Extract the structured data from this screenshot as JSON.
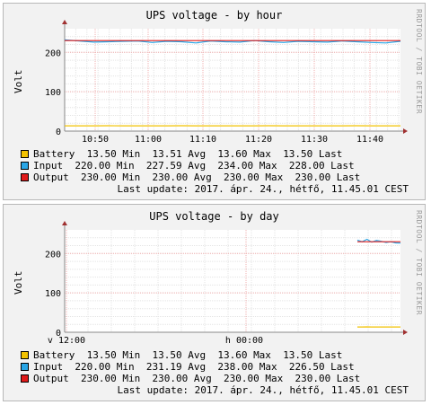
{
  "colors": {
    "battery": "#f2c200",
    "input": "#29a6e6",
    "output": "#e01b1b",
    "grid_major": "#f0b0b0",
    "grid_minor": "#e4e4e4",
    "axis": "#888888"
  },
  "side_text": "RRDTOOL / TOBI OETIKER",
  "graphs": [
    {
      "title": "UPS voltage - by hour",
      "ylabel": "Volt",
      "legend": [
        {
          "name": "Battery",
          "min": "13.50 Min",
          "avg": "13.51 Avg",
          "max": "13.60 Max",
          "last": "13.50 Last"
        },
        {
          "name": "Input",
          "min": "220.00 Min",
          "avg": "227.59 Avg",
          "max": "234.00 Max",
          "last": "228.00 Last"
        },
        {
          "name": "Output",
          "min": "230.00 Min",
          "avg": "230.00 Avg",
          "max": "230.00 Max",
          "last": "230.00 Last"
        }
      ],
      "last_update": "Last update: 2017. ápr. 24., hétfő, 11.45.01 CEST"
    },
    {
      "title": "UPS voltage - by day",
      "ylabel": "Volt",
      "legend": [
        {
          "name": "Battery",
          "min": "13.50 Min",
          "avg": "13.50 Avg",
          "max": "13.60 Max",
          "last": "13.50 Last"
        },
        {
          "name": "Input",
          "min": "220.00 Min",
          "avg": "231.19 Avg",
          "max": "238.00 Max",
          "last": "226.50 Last"
        },
        {
          "name": "Output",
          "min": "230.00 Min",
          "avg": "230.00 Avg",
          "max": "230.00 Max",
          "last": "230.00 Last"
        }
      ],
      "last_update": "Last update: 2017. ápr. 24., hétfő, 11.45.01 CEST"
    }
  ],
  "chart_data": [
    {
      "type": "line",
      "title": "UPS voltage - by hour",
      "ylabel": "Volt",
      "ylim": [
        0,
        260
      ],
      "yticks": [
        "0",
        "100",
        "200"
      ],
      "xticks": [
        "10:50",
        "11:00",
        "11:10",
        "11:20",
        "11:30",
        "11:40"
      ],
      "series": [
        {
          "name": "Battery",
          "values": [
            13.5,
            13.5,
            13.5,
            13.6,
            13.5,
            13.5,
            13.5,
            13.5,
            13.6,
            13.5,
            13.5,
            13.5,
            13.5,
            13.5,
            13.6,
            13.5,
            13.5,
            13.5,
            13.5,
            13.5,
            13.6,
            13.5,
            13.5,
            13.5
          ]
        },
        {
          "name": "Input",
          "values": [
            232,
            229,
            226,
            227,
            228,
            229,
            225,
            228,
            227,
            224,
            229,
            227,
            226,
            230,
            227,
            225,
            228,
            227,
            226,
            229,
            227,
            225,
            224,
            228
          ]
        },
        {
          "name": "Output",
          "values": [
            230,
            230,
            230,
            230,
            230,
            230,
            230,
            230,
            230,
            230,
            230,
            230,
            230,
            230,
            230,
            230,
            230,
            230,
            230,
            230,
            230,
            230,
            230,
            230
          ]
        }
      ],
      "grid": true
    },
    {
      "type": "line",
      "title": "UPS voltage - by day",
      "ylabel": "Volt",
      "ylim": [
        0,
        260
      ],
      "yticks": [
        "0",
        "100",
        "200"
      ],
      "xticks": [
        "v 12:00",
        "h 00:00"
      ],
      "series": [
        {
          "name": "Battery",
          "values": [
            13.5,
            13.5,
            13.6,
            13.5,
            13.5,
            13.5,
            13.5,
            13.5,
            13.5,
            13.5
          ]
        },
        {
          "name": "Input",
          "values": [
            234,
            230,
            236,
            229,
            233,
            231,
            228,
            230,
            227,
            226.5
          ]
        },
        {
          "name": "Output",
          "values": [
            230,
            230,
            230,
            230,
            230,
            230,
            230,
            230,
            230,
            230
          ]
        }
      ],
      "grid": true
    }
  ]
}
